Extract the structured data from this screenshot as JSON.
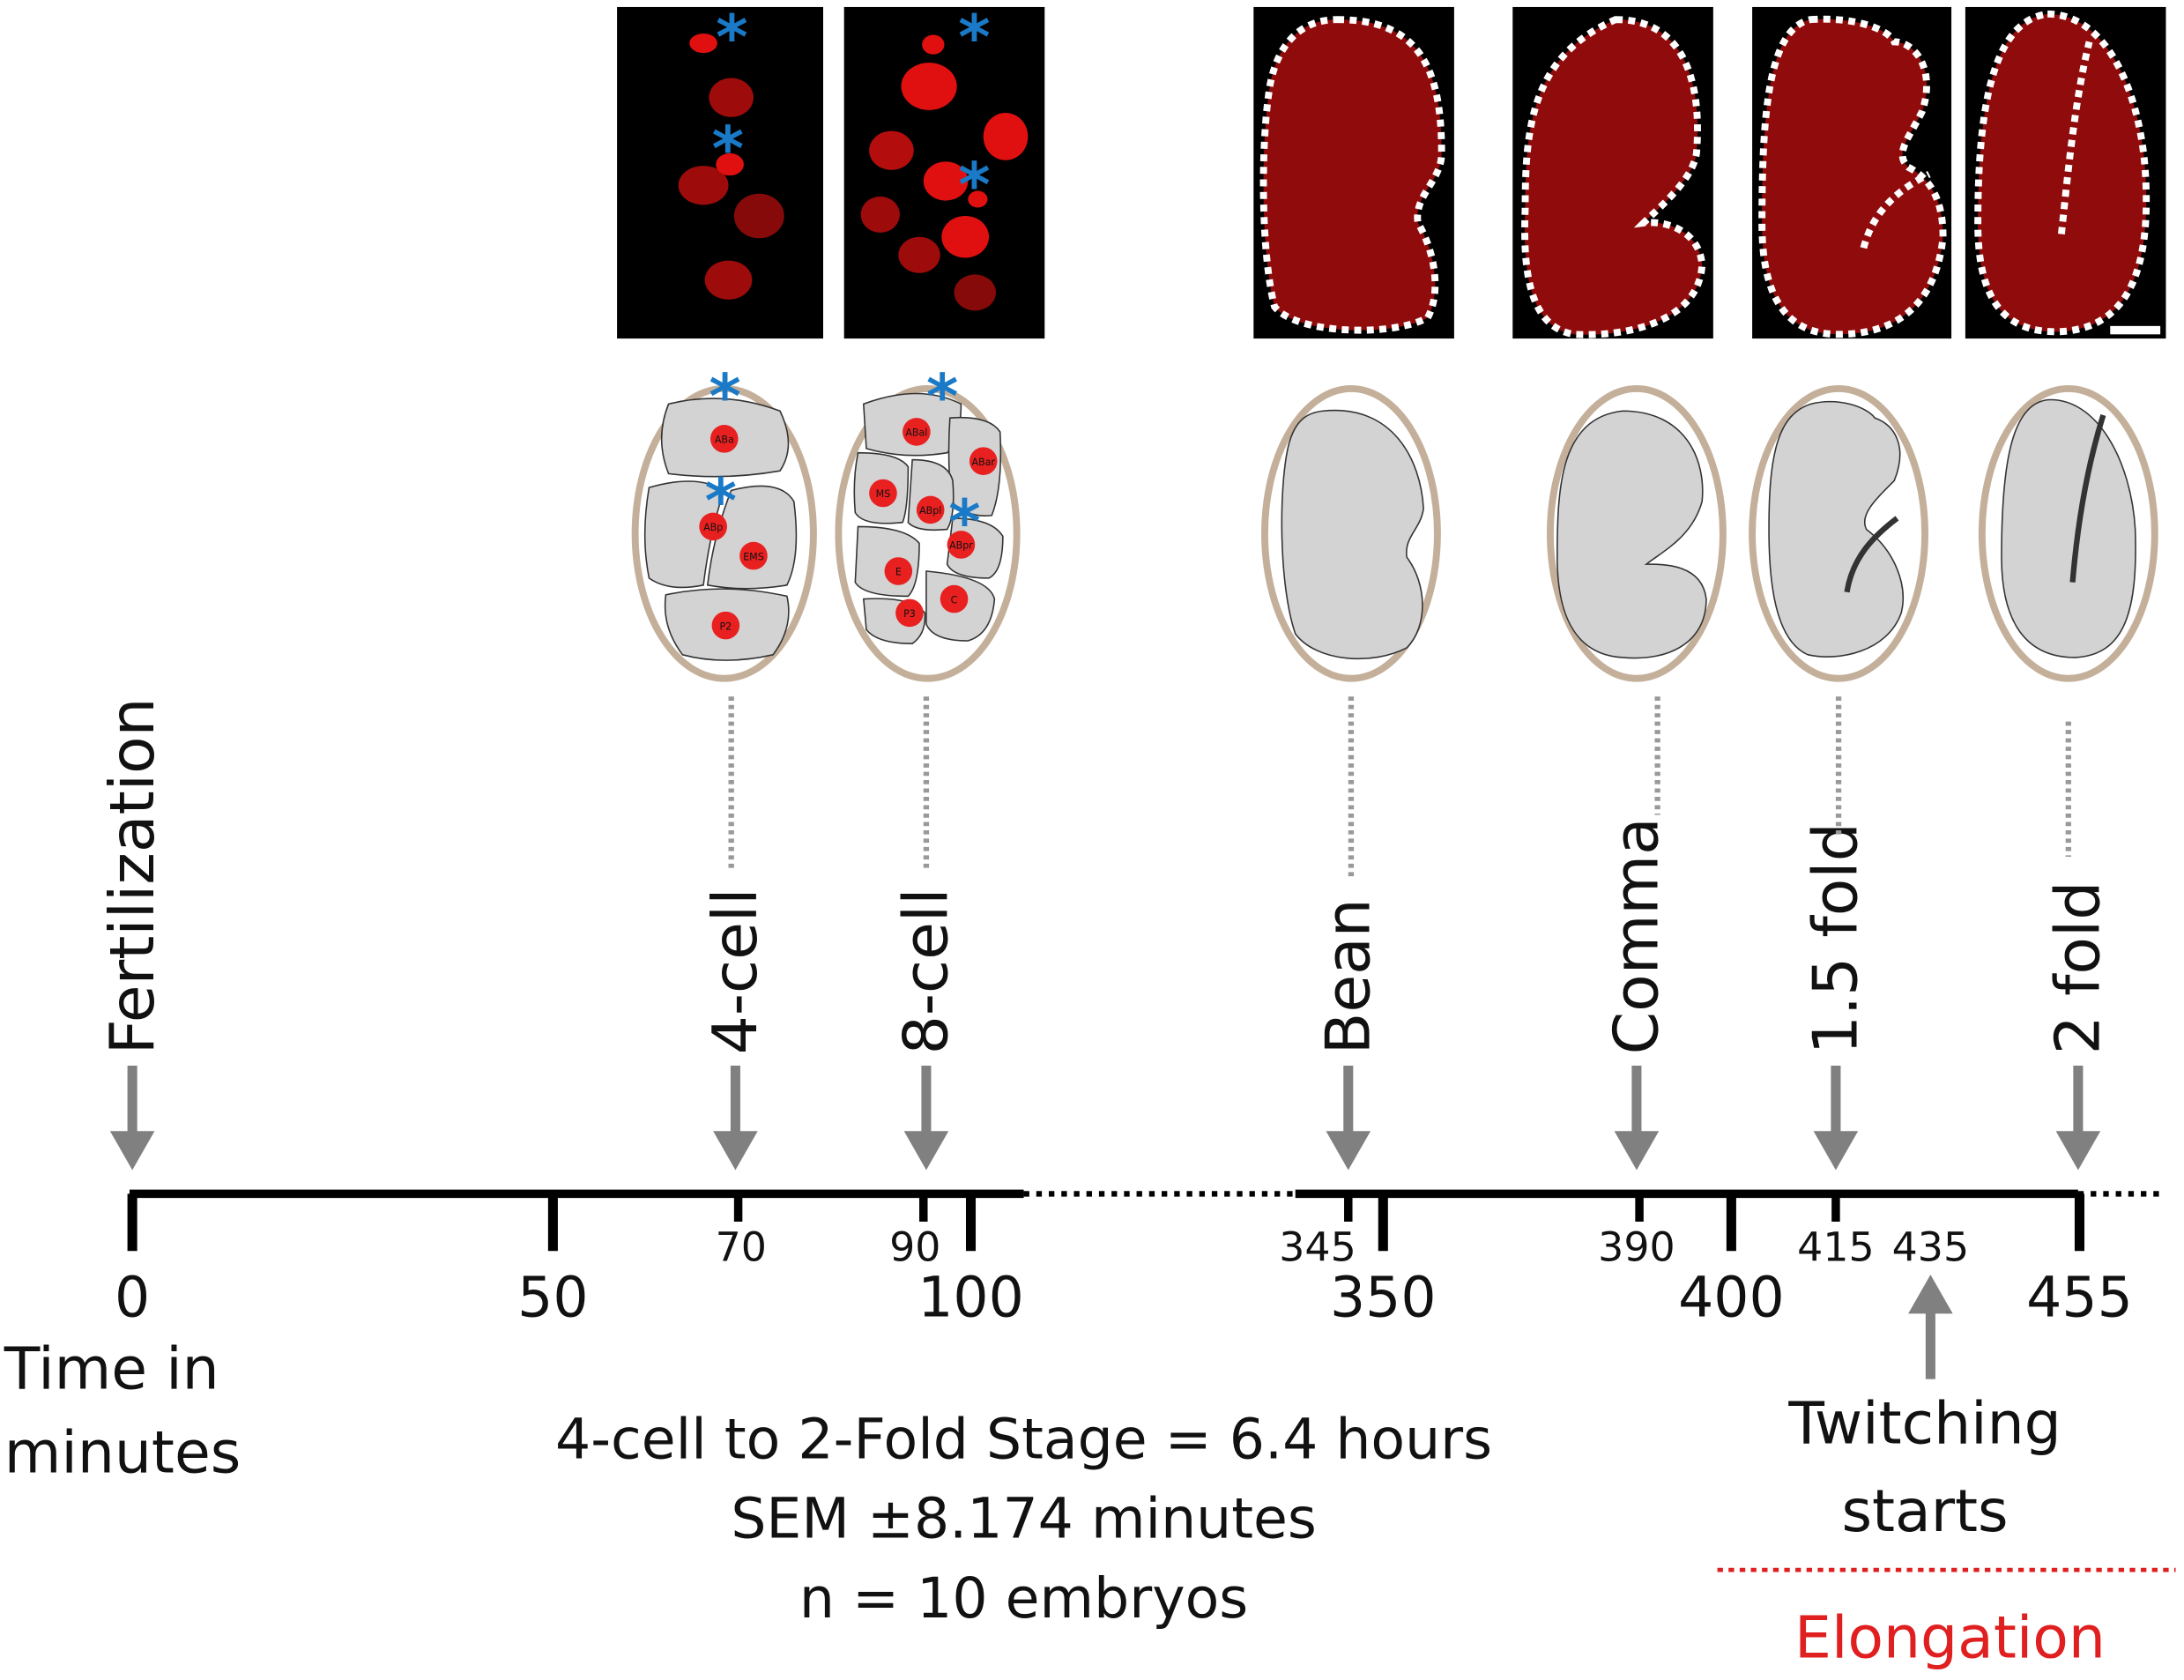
{
  "stages": [
    {
      "label": "Fertilization"
    },
    {
      "label": "4-cell"
    },
    {
      "label": "8-cell"
    },
    {
      "label": "Bean"
    },
    {
      "label": "Comma"
    },
    {
      "label": "1.5 fold"
    },
    {
      "label": "2 fold"
    }
  ],
  "timeline": {
    "major_ticks": [
      "0",
      "50",
      "100",
      "350",
      "400",
      "455"
    ],
    "minor_labels": [
      "70",
      "90",
      "345",
      "390",
      "415",
      "435"
    ]
  },
  "axis_label": [
    "Time in",
    "minutes"
  ],
  "summary": [
    "4-cell to 2-Fold Stage = 6.4 hours",
    "SEM ±8.174 minutes",
    "n = 10 embryos"
  ],
  "twitching": [
    "Twitching",
    "starts"
  ],
  "elongation": "Elongation",
  "cell_labels": {
    "four_cell": [
      "ABa",
      "ABp",
      "EMS",
      "P2"
    ],
    "eight_cell": [
      "ABal",
      "ABar",
      "MS",
      "ABpl",
      "ABpr",
      "E",
      "C",
      "P3"
    ]
  }
}
